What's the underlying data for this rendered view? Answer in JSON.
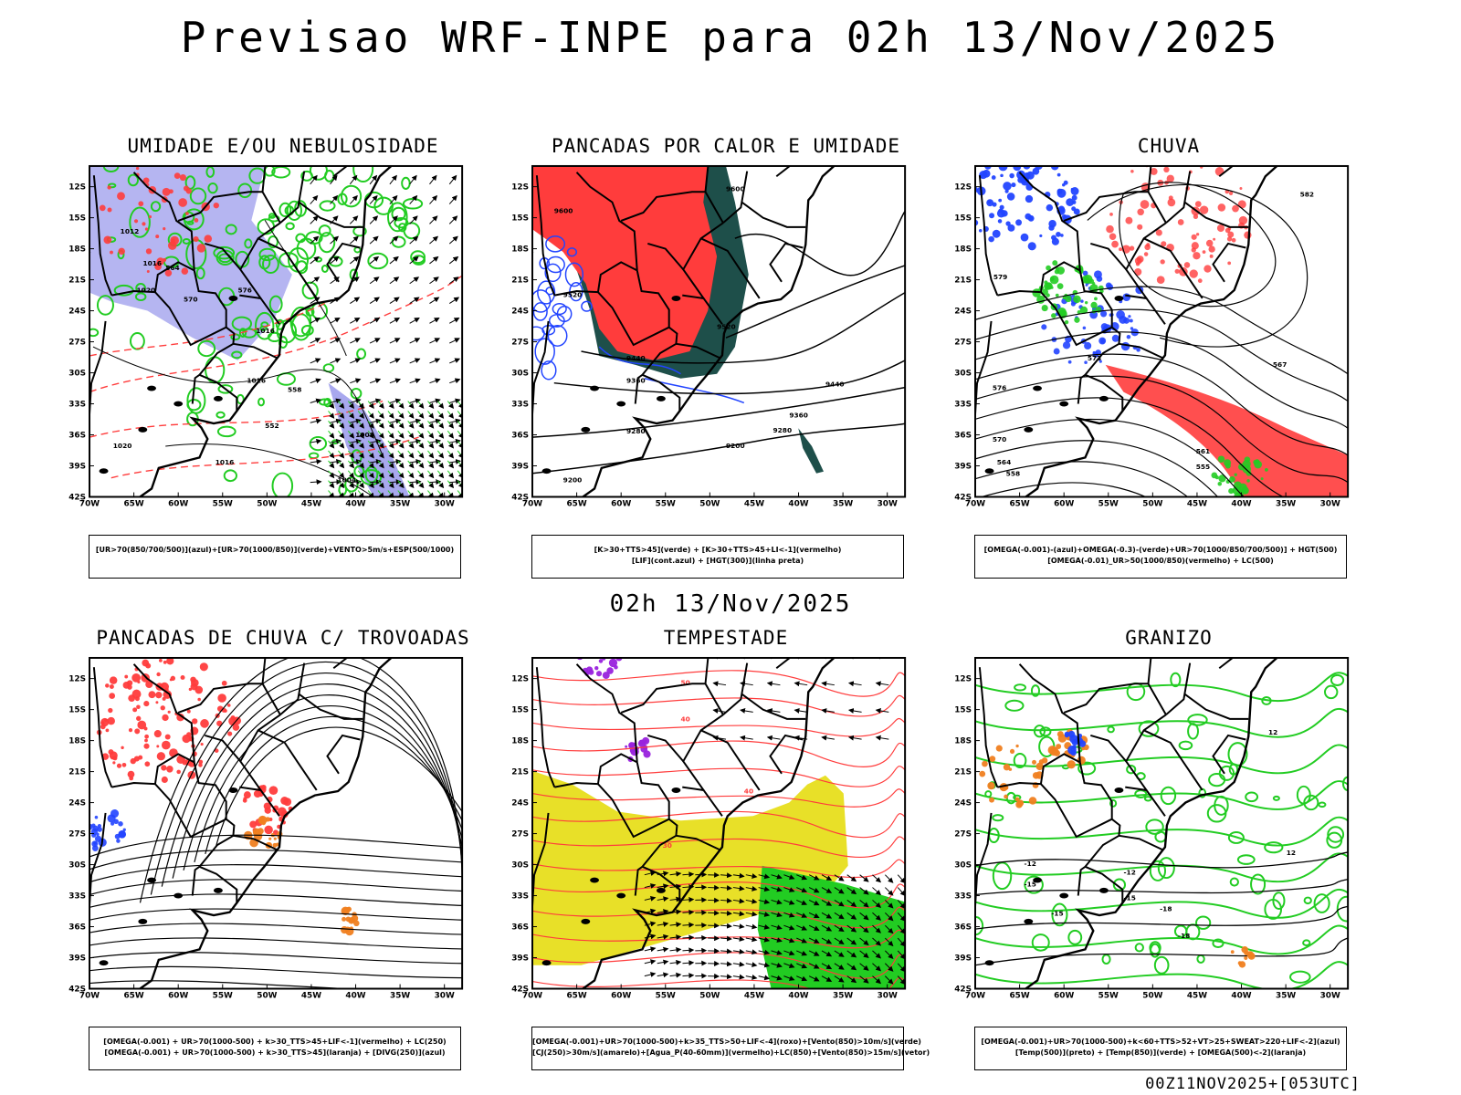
{
  "header": {
    "title": "Previsao WRF-INPE  para 02h 13/Nov/2025",
    "subtitle": "02h 13/Nov/2025",
    "footer": "00Z11NOV2025+[053UTC]"
  },
  "axes": {
    "lat_labels": [
      "12S",
      "15S",
      "18S",
      "21S",
      "24S",
      "27S",
      "30S",
      "33S",
      "36S",
      "39S",
      "42S"
    ],
    "lon_labels": [
      "70W",
      "65W",
      "60W",
      "55W",
      "50W",
      "45W",
      "40W",
      "35W",
      "30W"
    ]
  },
  "panels": [
    {
      "id": "umidade",
      "title": "UMIDADE E/OU NEBULOSIDADE",
      "legend": [
        "[UR>70(850/700/500)](azul)+[UR>70(1000/850)](verde)+VENTO>5m/s+ESP(500/1000)"
      ],
      "labels": [
        "1012",
        "1016",
        "1016",
        "1020",
        "1020",
        "570",
        "564",
        "576",
        "558",
        "552",
        "1016",
        "1016",
        "1008",
        "1004"
      ]
    },
    {
      "id": "pancadas-calor",
      "title": "PANCADAS POR CALOR E UMIDADE",
      "legend": [
        "[K>30+TTS>45](verde) + [K>30+TTS>45+LI<-1](vermelho)",
        "[LIF](cont.azul) + [HGT(300)](linha preta)"
      ],
      "labels": [
        "9600",
        "9600",
        "9520",
        "9520",
        "9440",
        "9440",
        "9360",
        "9360",
        "9280",
        "9280",
        "9200",
        "9200"
      ]
    },
    {
      "id": "chuva",
      "title": "CHUVA",
      "legend": [
        "[OMEGA(-0.001)-(azul)+OMEGA(-0.3)-(verde)+UR>70(1000/850/700/500)] + HGT(500)",
        "[OMEGA(-0.01)_UR>50(1000/850)(vermelho) + LC(500)"
      ],
      "labels": [
        "582",
        "579",
        "576",
        "573",
        "570",
        "567",
        "564",
        "561",
        "558",
        "555"
      ]
    },
    {
      "id": "trovoadas",
      "title": "PANCADAS DE CHUVA C/ TROVOADAS",
      "legend": [
        "[OMEGA(-0.001) + UR>70(1000-500) + k>30_TTS>45+LIF<-1](vermelho) + LC(250)",
        "[OMEGA(-0.001) + UR>70(1000-500) + k>30_TTS>45](laranja) + [DIVG(250)](azul)"
      ],
      "labels": []
    },
    {
      "id": "tempestade",
      "title": "TEMPESTADE",
      "legend": [
        "[OMEGA(-0.001)+UR>70(1000-500)+k>35_TTS>50+LIF<-4](roxo)+[Vento(850)>10m/s](verde)",
        "[CJ(250)>30m/s](amarelo)+[Agua_P(40-60mm)](vermelho)+LC(850)+[Vento(850)>15m/s](vetor)"
      ],
      "labels": [
        "50",
        "40",
        "40",
        "30"
      ]
    },
    {
      "id": "granizo",
      "title": "GRANIZO",
      "legend": [
        "[OMEGA(-0.001)+UR>70(1000-500)+k<60+TTS>52+VT>25+SWEAT>220+LIF<-2](azul)",
        "[Temp(500)](preto) + [Temp(850)](verde) + [OMEGA(500)<-2](laranja)"
      ],
      "labels": [
        "12",
        "-12",
        "-12",
        "-15",
        "-15",
        "-18",
        "-18",
        "-15",
        "12"
      ]
    }
  ],
  "colors": {
    "humid_mid": "#a8a8ee",
    "green": "#22cc22",
    "red": "#ff3c3c",
    "blue": "#2244ff",
    "yellow": "#e8e028",
    "darkgreen": "#1e4f4a",
    "orange": "#f08020",
    "purple": "#9922dd"
  }
}
